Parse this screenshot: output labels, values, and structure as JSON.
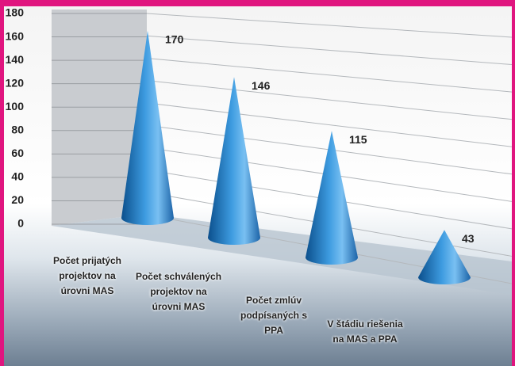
{
  "chart_data": {
    "type": "cone",
    "categories": [
      "Počet prijatých projektov na úrovni MAS",
      "Počet schválených projektov na úrovni MAS",
      "Počet zmlúv podpísaných s PPA",
      "V štádiu riešenia na MAS a PPA"
    ],
    "values": [
      170,
      146,
      115,
      43
    ],
    "color": "#2a86d0",
    "ylim": [
      0,
      180
    ],
    "yticks": [
      0,
      20,
      40,
      60,
      80,
      100,
      120,
      140,
      160,
      180
    ],
    "grid": true
  }
}
